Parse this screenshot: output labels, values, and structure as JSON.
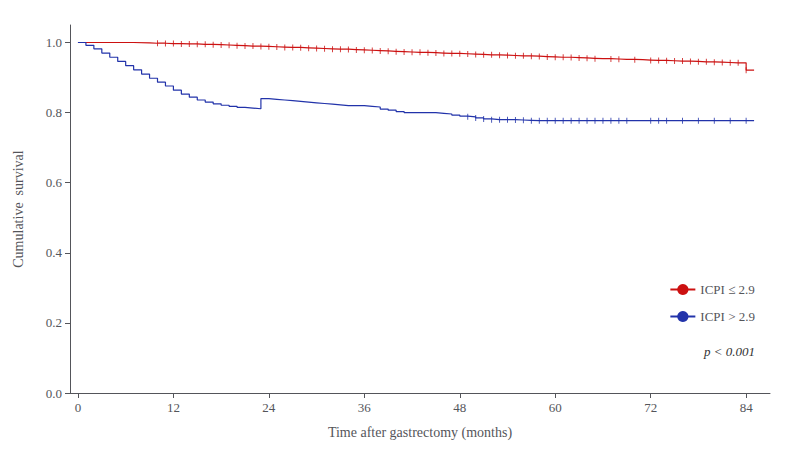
{
  "chart_data": {
    "type": "step",
    "xlabel": "Time after gastrectomy (months)",
    "ylabel": "Cumulative  survival",
    "xlim": [
      -1,
      87
    ],
    "ylim": [
      0.0,
      1.05
    ],
    "xticks": [
      0,
      12,
      24,
      36,
      48,
      60,
      72,
      84
    ],
    "yticks": [
      {
        "value": 0.0,
        "label": "0.0"
      },
      0.2,
      0.4,
      0.6,
      0.8,
      {
        "value": 1.0,
        "label": "1.0"
      }
    ],
    "grid": false,
    "legend": "lower right",
    "annotation": "p < 0.001",
    "series": [
      {
        "name": "ICPI ≤ 2.9",
        "color": "#cc1111",
        "x": [
          0,
          5,
          7,
          9,
          10,
          11,
          12,
          13,
          14,
          15,
          16,
          17,
          18,
          19,
          20,
          21,
          22,
          23,
          24,
          25,
          26,
          27,
          28,
          29,
          30,
          31,
          32,
          33,
          34,
          35,
          36,
          37,
          38,
          39,
          40,
          41,
          42,
          43,
          44,
          45,
          46,
          47,
          48,
          49,
          50,
          51,
          52,
          53,
          54,
          55,
          56,
          57,
          58,
          59,
          60,
          61,
          62,
          63,
          64,
          65,
          66,
          67,
          68,
          69,
          70,
          71,
          72,
          73,
          74,
          75,
          76,
          77,
          78,
          79,
          80,
          81,
          82,
          83,
          84,
          85
        ],
        "values": [
          1.0,
          1.0,
          0.999,
          0.998,
          0.998,
          0.997,
          0.997,
          0.996,
          0.996,
          0.995,
          0.995,
          0.994,
          0.993,
          0.992,
          0.991,
          0.99,
          0.99,
          0.989,
          0.988,
          0.987,
          0.986,
          0.986,
          0.985,
          0.984,
          0.983,
          0.982,
          0.981,
          0.981,
          0.98,
          0.979,
          0.978,
          0.977,
          0.976,
          0.975,
          0.974,
          0.973,
          0.972,
          0.972,
          0.971,
          0.97,
          0.969,
          0.969,
          0.968,
          0.967,
          0.966,
          0.965,
          0.965,
          0.964,
          0.963,
          0.962,
          0.962,
          0.961,
          0.96,
          0.959,
          0.958,
          0.958,
          0.957,
          0.956,
          0.955,
          0.954,
          0.954,
          0.953,
          0.952,
          0.952,
          0.951,
          0.95,
          0.949,
          0.949,
          0.948,
          0.947,
          0.947,
          0.946,
          0.945,
          0.945,
          0.944,
          0.943,
          0.942,
          0.942,
          0.921,
          0.921
        ],
        "censor_times": [
          10,
          11,
          12,
          13,
          14,
          15,
          16,
          17,
          18,
          19,
          20,
          21,
          22,
          23,
          24,
          25,
          26,
          27,
          28,
          29,
          30,
          31,
          32,
          33,
          34,
          35,
          36,
          37,
          38,
          39,
          40,
          41,
          42,
          43,
          44,
          45,
          46,
          47,
          48,
          49,
          50,
          51,
          52,
          53,
          54,
          55,
          56,
          57,
          58,
          59,
          60,
          61,
          62,
          63,
          64,
          65,
          67,
          68,
          70,
          72,
          73,
          74,
          75,
          76,
          77,
          78,
          79,
          80,
          81,
          82,
          83,
          84
        ],
        "censor_survival": [
          0.998,
          0.997,
          0.997,
          0.996,
          0.996,
          0.995,
          0.995,
          0.994,
          0.993,
          0.992,
          0.991,
          0.99,
          0.99,
          0.989,
          0.988,
          0.987,
          0.986,
          0.986,
          0.985,
          0.984,
          0.983,
          0.982,
          0.981,
          0.981,
          0.98,
          0.979,
          0.978,
          0.977,
          0.976,
          0.975,
          0.974,
          0.973,
          0.972,
          0.972,
          0.971,
          0.97,
          0.969,
          0.969,
          0.968,
          0.967,
          0.966,
          0.965,
          0.965,
          0.964,
          0.963,
          0.962,
          0.962,
          0.961,
          0.96,
          0.959,
          0.958,
          0.958,
          0.957,
          0.956,
          0.955,
          0.954,
          0.953,
          0.952,
          0.951,
          0.949,
          0.949,
          0.948,
          0.947,
          0.947,
          0.946,
          0.945,
          0.945,
          0.944,
          0.943,
          0.942,
          0.942,
          0.921
        ]
      },
      {
        "name": "ICPI > 2.9",
        "color": "#2233aa",
        "x": [
          0,
          1,
          2,
          3,
          4,
          5,
          6,
          7,
          8,
          9,
          10,
          11,
          12,
          13,
          14,
          15,
          16,
          17,
          18,
          19,
          20,
          21,
          22,
          23,
          24,
          25,
          26,
          27,
          28,
          29,
          30,
          31,
          32,
          33,
          34,
          35,
          36,
          37,
          38,
          39,
          40,
          41,
          42,
          43,
          44,
          45,
          46,
          47,
          48,
          49,
          50,
          51,
          52,
          53,
          54,
          55,
          56,
          57,
          58,
          59,
          60,
          61,
          62,
          63,
          64,
          65,
          66,
          67,
          68,
          69,
          70,
          71,
          72,
          73,
          74,
          75,
          76,
          77,
          78,
          79,
          80,
          81,
          82,
          83,
          84,
          85
        ],
        "values": [
          1.0,
          0.992,
          0.982,
          0.97,
          0.958,
          0.946,
          0.934,
          0.922,
          0.91,
          0.898,
          0.887,
          0.876,
          0.864,
          0.853,
          0.844,
          0.836,
          0.83,
          0.825,
          0.821,
          0.818,
          0.815,
          0.813,
          0.811,
          0.84,
          0.838,
          0.836,
          0.834,
          0.832,
          0.83,
          0.828,
          0.826,
          0.824,
          0.822,
          0.82,
          0.82,
          0.82,
          0.818,
          0.816,
          0.81,
          0.807,
          0.803,
          0.8,
          0.8,
          0.8,
          0.8,
          0.798,
          0.796,
          0.793,
          0.79,
          0.788,
          0.785,
          0.782,
          0.78,
          0.78,
          0.78,
          0.779,
          0.778,
          0.777,
          0.777,
          0.777,
          0.777,
          0.777,
          0.777,
          0.777,
          0.777,
          0.777,
          0.777,
          0.777,
          0.777,
          0.777,
          0.777,
          0.777,
          0.777,
          0.777,
          0.777,
          0.777,
          0.777,
          0.777,
          0.777,
          0.777,
          0.777,
          0.777,
          0.777,
          0.777,
          0.777,
          0.777
        ],
        "censor_times": [
          49,
          50,
          51,
          52,
          53,
          54,
          55,
          56,
          57,
          58,
          59,
          60,
          61,
          62,
          63,
          64,
          65,
          66,
          67,
          68,
          69,
          72,
          73,
          74,
          76,
          78,
          80,
          82,
          84
        ],
        "censor_survival": [
          0.788,
          0.785,
          0.782,
          0.78,
          0.78,
          0.78,
          0.779,
          0.778,
          0.777,
          0.777,
          0.777,
          0.777,
          0.777,
          0.777,
          0.777,
          0.777,
          0.777,
          0.777,
          0.777,
          0.777,
          0.777,
          0.777,
          0.777,
          0.777,
          0.777,
          0.777,
          0.777,
          0.777,
          0.777
        ]
      }
    ]
  }
}
